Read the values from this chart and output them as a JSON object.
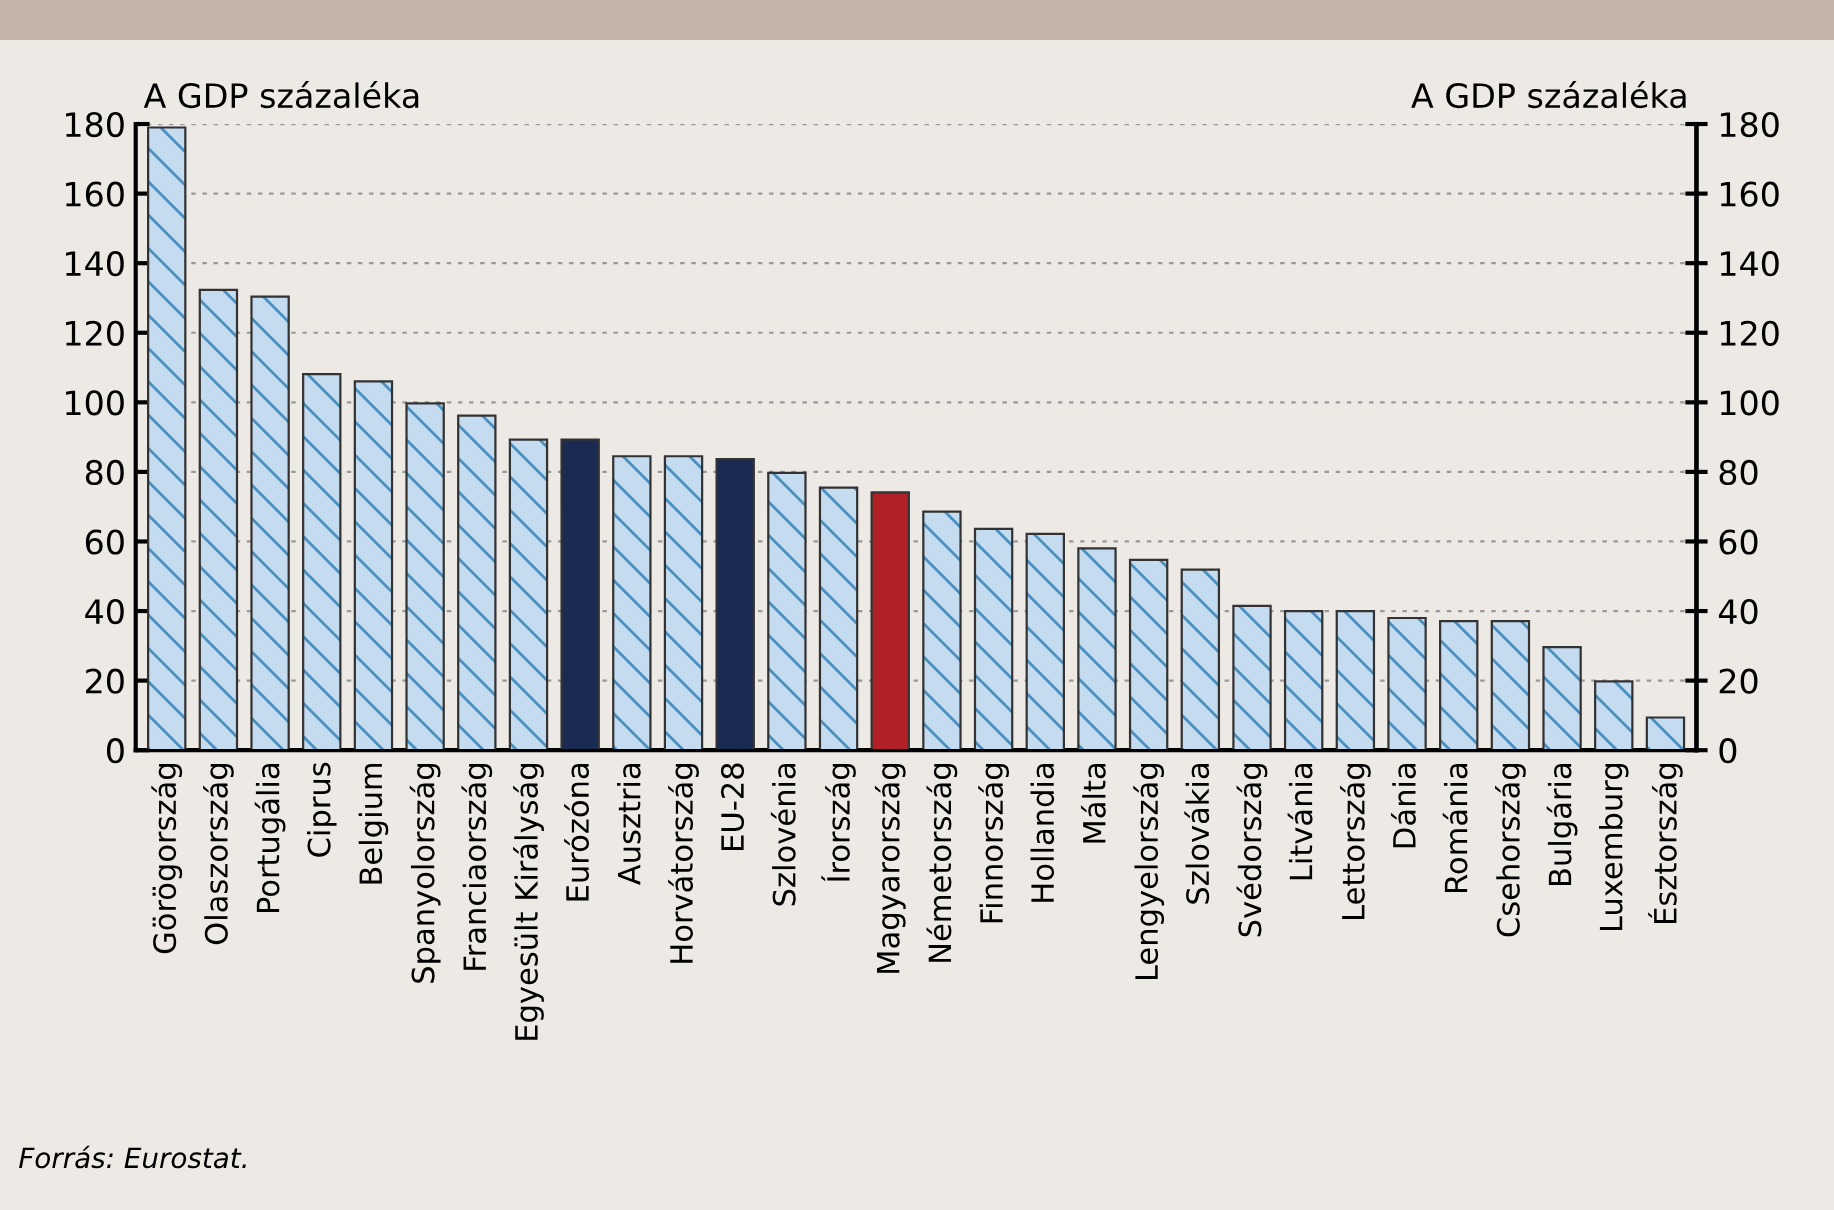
{
  "chart_data": {
    "type": "bar",
    "categories": [
      "Görögország",
      "Olaszország",
      "Portugália",
      "Ciprus",
      "Belgium",
      "Spanyolország",
      "Franciaország",
      "Egyesült Királyság",
      "Eurózóna",
      "Ausztria",
      "Horvátország",
      "EU-28",
      "Szlovénia",
      "Írország",
      "Magyarország",
      "Németország",
      "Finnország",
      "Hollandia",
      "Málta",
      "Lengyelország",
      "Szlovákia",
      "Svédország",
      "Litvánia",
      "Lettország",
      "Dánia",
      "Románia",
      "Csehország",
      "Bulgária",
      "Luxemburg",
      "Észtország"
    ],
    "values": [
      179,
      132.3,
      130.4,
      108.1,
      106,
      99.7,
      96.2,
      89.3,
      89.3,
      84.5,
      84.5,
      83.7,
      79.7,
      75.5,
      74.1,
      68.6,
      63.6,
      62.2,
      58,
      54.7,
      51.9,
      41.5,
      40,
      40,
      38,
      37.1,
      37.1,
      29.6,
      19.8,
      9.4
    ],
    "colors": [
      "#c5dbef",
      "#c5dbef",
      "#c5dbef",
      "#c5dbef",
      "#c5dbef",
      "#c5dbef",
      "#c5dbef",
      "#c5dbef",
      "#1a2a52",
      "#c5dbef",
      "#c5dbef",
      "#1a2a52",
      "#c5dbef",
      "#c5dbef",
      "#b02025",
      "#c5dbef",
      "#c5dbef",
      "#c5dbef",
      "#c5dbef",
      "#c5dbef",
      "#c5dbef",
      "#c5dbef",
      "#c5dbef",
      "#c5dbef",
      "#c5dbef",
      "#c5dbef",
      "#c5dbef",
      "#c5dbef",
      "#c5dbef",
      "#c5dbef"
    ],
    "ylabel": "A GDP százaléka",
    "y2label": "A GDP százaléka",
    "ylim": [
      0,
      180
    ],
    "yticks": [
      0,
      20,
      40,
      60,
      80,
      100,
      120,
      140,
      160,
      180
    ],
    "y2lim": [
      0,
      180
    ],
    "y2ticks": [
      0,
      20,
      40,
      60,
      80,
      100,
      120,
      140,
      160,
      180
    ],
    "grid": "y",
    "annotations": [
      "Forrás: Eurostat."
    ]
  }
}
